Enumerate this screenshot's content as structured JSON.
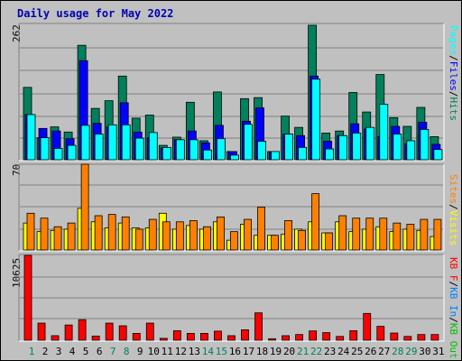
{
  "title": "Daily usage for May 2022",
  "colors": {
    "hits": "#00805c",
    "files": "#0000ff",
    "pages": "#00ffff",
    "visits": "#ffff00",
    "sites": "#ff8000",
    "kb_out": "#00c000",
    "kb_in": "#0080ff",
    "kb_f": "#ff0000",
    "weekend_day": "#00805c",
    "weekday": "#0000b4"
  },
  "chart_data": [
    {
      "type": "bar",
      "categories": [
        "1",
        "2",
        "3",
        "4",
        "5",
        "6",
        "7",
        "8",
        "9",
        "10",
        "11",
        "12",
        "13",
        "14",
        "15",
        "16",
        "17",
        "18",
        "19",
        "20",
        "21",
        "22",
        "23",
        "24",
        "25",
        "26",
        "27",
        "28",
        "29",
        "30",
        "31"
      ],
      "weekend_days": [
        "1",
        "7",
        "8",
        "14",
        "15",
        "21",
        "22",
        "28",
        "29"
      ],
      "ymax_label": "262",
      "ylim": [
        0,
        262
      ],
      "series": [
        {
          "name": "Hits",
          "values": [
            141,
            43,
            64,
            54,
            223,
            100,
            115,
            163,
            81,
            87,
            28,
            44,
            112,
            37,
            132,
            16,
            119,
            121,
            16,
            85,
            63,
            262,
            52,
            56,
            131,
            93,
            166,
            82,
            65,
            102,
            45
          ]
        },
        {
          "name": "Files",
          "values": [
            88,
            61,
            56,
            41,
            193,
            71,
            64,
            111,
            54,
            43,
            23,
            39,
            56,
            33,
            67,
            16,
            75,
            101,
            16,
            50,
            47,
            163,
            36,
            47,
            70,
            60,
            45,
            65,
            31,
            73,
            30
          ]
        },
        {
          "name": "Pages",
          "values": [
            88,
            43,
            22,
            28,
            67,
            50,
            68,
            68,
            42,
            53,
            24,
            39,
            39,
            19,
            41,
            9,
            69,
            36,
            16,
            50,
            24,
            157,
            21,
            47,
            52,
            63,
            108,
            50,
            37,
            59,
            20
          ]
        }
      ],
      "legend": [
        "Pages",
        "Files",
        "Hits"
      ]
    },
    {
      "type": "bar",
      "categories": [
        "1",
        "2",
        "3",
        "4",
        "5",
        "6",
        "7",
        "8",
        "9",
        "10",
        "11",
        "12",
        "13",
        "14",
        "15",
        "16",
        "17",
        "18",
        "19",
        "20",
        "21",
        "22",
        "23",
        "24",
        "25",
        "26",
        "27",
        "28",
        "29",
        "30",
        "31"
      ],
      "ymax_label": "70",
      "ylim": [
        0,
        70
      ],
      "series": [
        {
          "name": "Visits",
          "values": [
            22,
            15,
            16,
            17,
            34,
            23,
            18,
            22,
            18,
            18,
            30,
            17,
            20,
            17,
            23,
            8,
            21,
            12,
            12,
            13,
            17,
            23,
            14,
            23,
            15,
            17,
            19,
            15,
            17,
            16,
            11
          ]
        },
        {
          "name": "Sites",
          "values": [
            30,
            26,
            19,
            22,
            70,
            28,
            29,
            27,
            17,
            25,
            23,
            23,
            24,
            19,
            27,
            15,
            25,
            35,
            12,
            24,
            16,
            46,
            14,
            28,
            26,
            26,
            26,
            22,
            21,
            25,
            25
          ]
        }
      ],
      "legend": [
        "Sites",
        "Visits"
      ]
    },
    {
      "type": "bar",
      "categories": [
        "1",
        "2",
        "3",
        "4",
        "5",
        "6",
        "7",
        "8",
        "9",
        "10",
        "11",
        "12",
        "13",
        "14",
        "15",
        "16",
        "17",
        "18",
        "19",
        "20",
        "21",
        "22",
        "23",
        "24",
        "25",
        "26",
        "27",
        "28",
        "29",
        "30",
        "31"
      ],
      "ymax_label": "10625",
      "ylim": [
        0,
        10625
      ],
      "series": [
        {
          "name": "KB F",
          "values": [
            10625,
            2142,
            571,
            1909,
            2571,
            524,
            2142,
            1809,
            857,
            2142,
            238,
            1190,
            857,
            857,
            1142,
            571,
            1309,
            3428,
            190,
            571,
            714,
            1166,
            952,
            476,
            1190,
            3357,
            1738,
            904,
            476,
            714,
            714
          ]
        }
      ],
      "legend": [
        "KB F",
        "KB In",
        "KB Out"
      ]
    }
  ]
}
